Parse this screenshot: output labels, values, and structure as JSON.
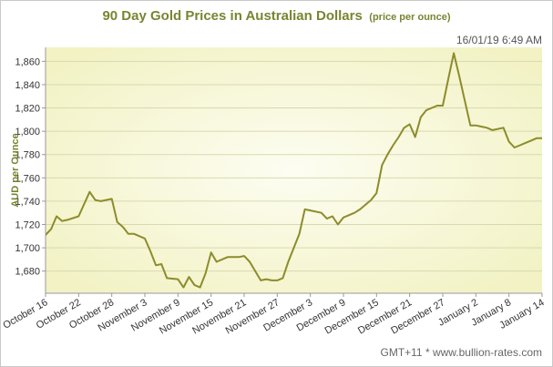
{
  "title": "90 Day Gold Prices in Australian Dollars",
  "subtitle": "(price per ounce)",
  "timestamp": "16/01/19 6:49 AM",
  "footer": "GMT+11 * www.bullion-rates.com",
  "colors": {
    "line": "#8c8c2c",
    "title": "#7a8431",
    "plot_bg_edge": "#f2f2c4",
    "plot_bg_center": "#fdfdf2",
    "grid": "#d9d9b0"
  },
  "chart_data": {
    "type": "line",
    "title": "90 Day Gold Prices in Australian Dollars",
    "subtitle": "(price per ounce)",
    "ylabel": "AUD per Ounce",
    "xlabel": "",
    "ylim": [
      1661,
      1872
    ],
    "yticks": [
      1680,
      1700,
      1720,
      1740,
      1760,
      1780,
      1800,
      1820,
      1840,
      1860
    ],
    "ytick_labels": [
      "1,680",
      "1,700",
      "1,720",
      "1,740",
      "1,760",
      "1,780",
      "1,800",
      "1,820",
      "1,840",
      "1,860"
    ],
    "xlim": [
      0,
      90
    ],
    "xticks": [
      0,
      6,
      12,
      18,
      24,
      30,
      36,
      42,
      48,
      54,
      60,
      66,
      72,
      78,
      84,
      90
    ],
    "xtick_labels": [
      "October 16",
      "October 22",
      "October 28",
      "November 3",
      "November 9",
      "November 15",
      "November 21",
      "November 27",
      "December 3",
      "December 9",
      "December 15",
      "December 21",
      "December 27",
      "January 2",
      "January 8",
      "January 14"
    ],
    "grid": "horizontal",
    "series": [
      {
        "x": [
          0,
          1,
          2,
          3,
          4,
          6,
          8,
          9,
          10,
          12,
          13,
          14,
          15,
          16,
          18,
          19,
          20,
          21,
          22,
          24,
          25,
          26,
          27,
          28,
          29,
          30,
          31,
          33,
          34,
          35,
          36,
          37,
          39,
          40,
          41,
          42,
          43,
          44,
          45,
          46,
          47,
          48,
          50,
          51,
          52,
          53,
          54,
          56,
          57,
          58,
          59,
          60,
          61,
          62,
          63,
          64,
          65,
          66,
          67,
          68,
          69,
          70,
          71,
          72,
          73,
          74,
          75,
          77,
          78,
          79,
          80,
          81,
          83,
          84,
          85,
          86,
          87,
          88,
          89,
          90
        ],
        "y": [
          1711,
          1716,
          1727,
          1723,
          1724,
          1727,
          1748,
          1741,
          1740,
          1742,
          1722,
          1718,
          1712,
          1712,
          1708,
          1697,
          1685,
          1686,
          1674,
          1673,
          1666,
          1675,
          1668,
          1666,
          1678,
          1696,
          1688,
          1692,
          1692,
          1692,
          1693,
          1688,
          1672,
          1673,
          1672,
          1672,
          1674,
          1688,
          1700,
          1712,
          1733,
          1732,
          1730,
          1725,
          1727,
          1720,
          1726,
          1730,
          1733,
          1737,
          1741,
          1747,
          1771,
          1780,
          1788,
          1795,
          1803,
          1806,
          1795,
          1812,
          1818,
          1820,
          1822,
          1822,
          1845,
          1867,
          1847,
          1805,
          1805,
          1804,
          1803,
          1801,
          1803,
          1791,
          1786,
          1788,
          1790,
          1792,
          1794,
          1794
        ]
      }
    ]
  }
}
